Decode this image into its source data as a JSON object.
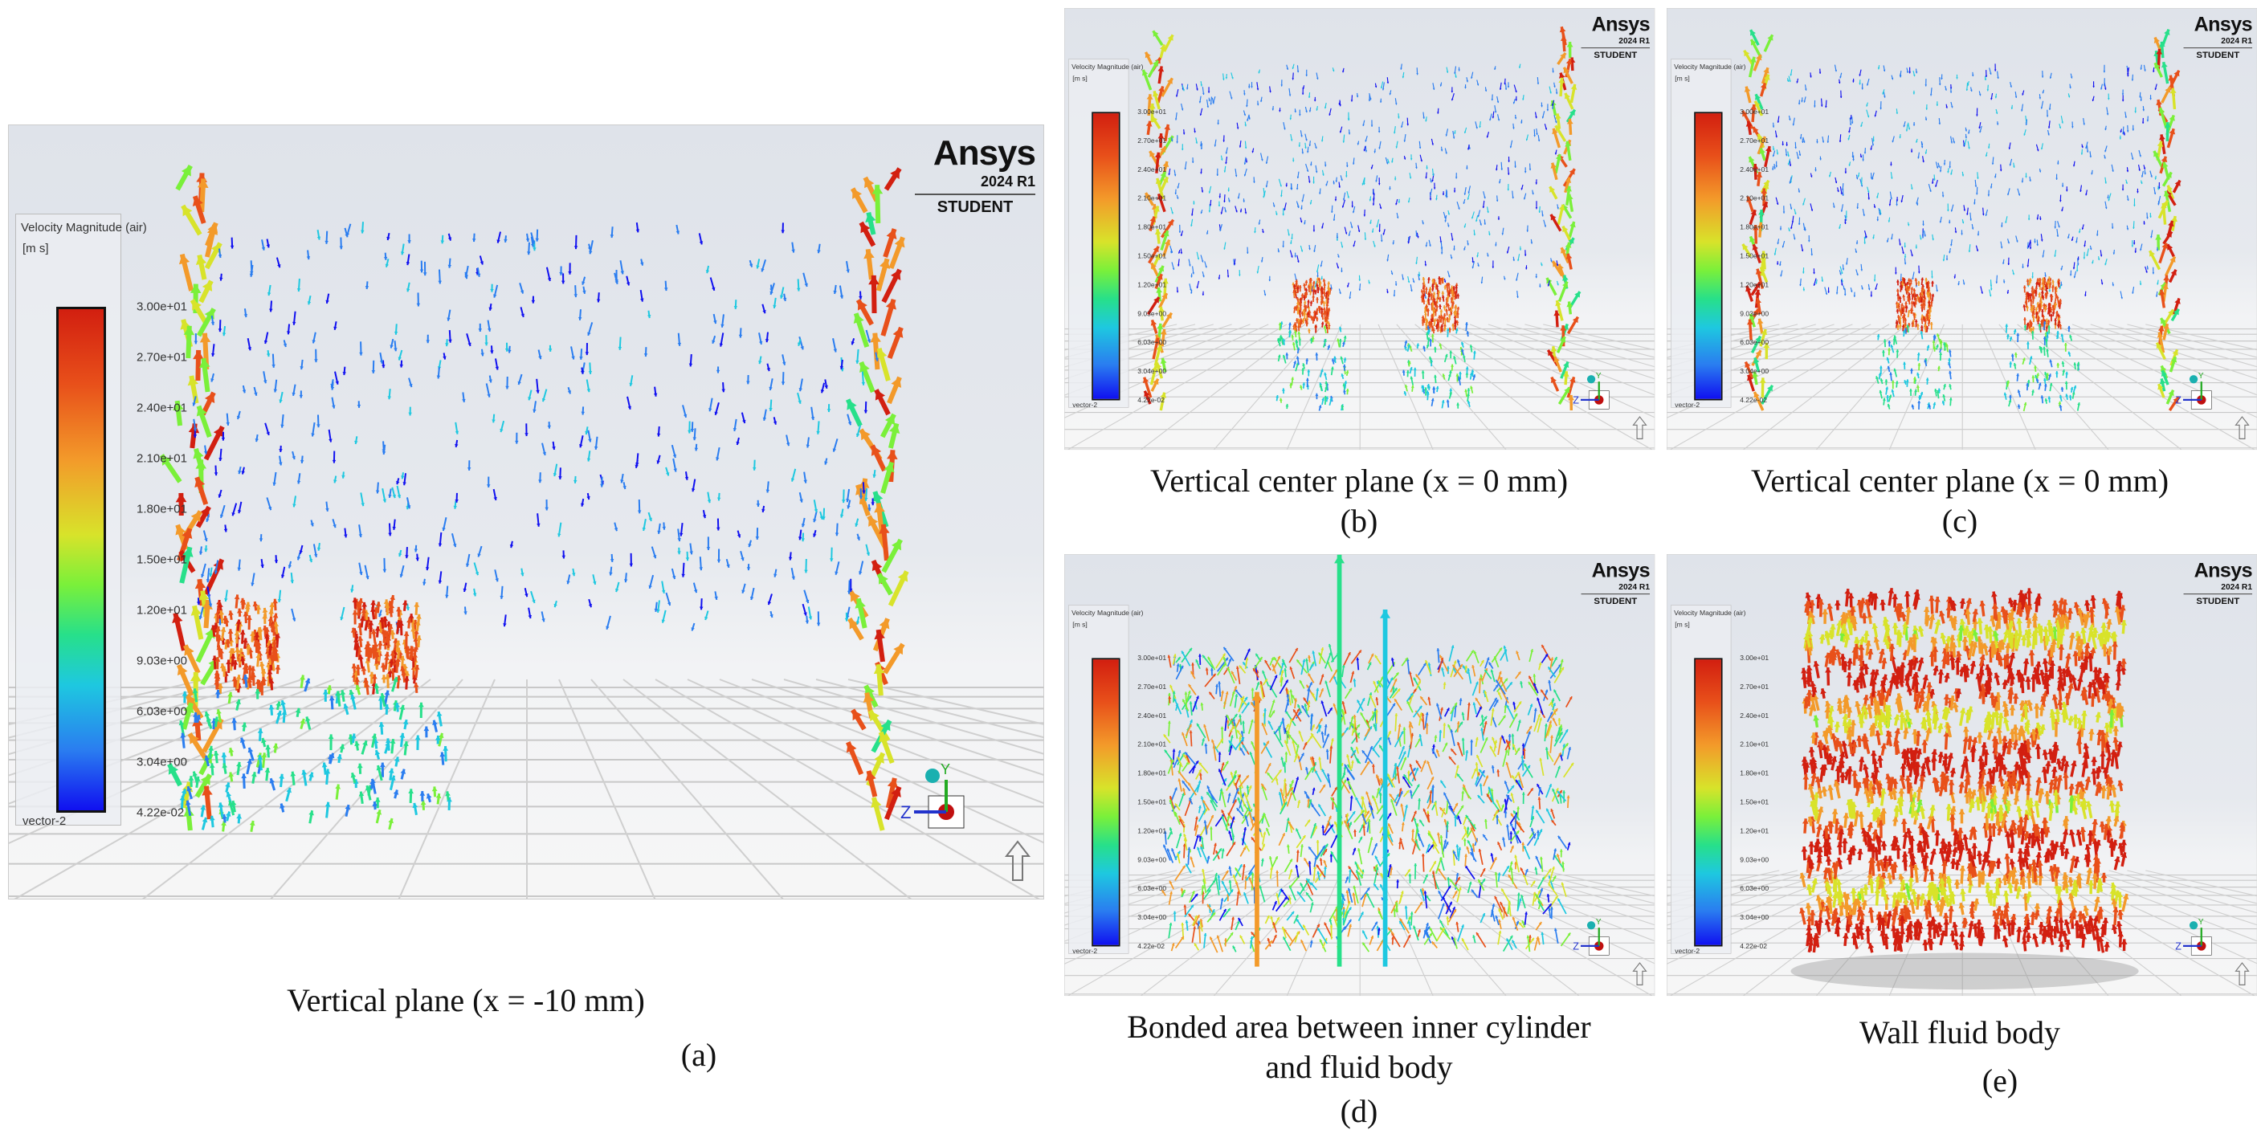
{
  "legend": {
    "title": "Velocity Magnitude (air)",
    "unit": "[m s]",
    "labels": [
      "3.00e+01",
      "2.70e+01",
      "2.40e+01",
      "2.10e+01",
      "1.80e+01",
      "1.50e+01",
      "1.20e+01",
      "9.03e+00",
      "6.03e+00",
      "3.04e+00",
      "4.22e-02"
    ],
    "vector_label": "vector-2",
    "colormap": [
      "#d21f10",
      "#e8501a",
      "#f39a2a",
      "#d8e32a",
      "#7af03a",
      "#27e08a",
      "#1ec8e0",
      "#2a7df0",
      "#1010f0"
    ]
  },
  "logo": {
    "brand": "Ansys",
    "version": "2024 R1",
    "edition": "STUDENT"
  },
  "triad": {
    "axis_z": "Z",
    "axis_y": "Y"
  },
  "panels": [
    {
      "id": "a",
      "caption": "Vertical plane (x = -10 mm)",
      "label": "(a)",
      "mode": "plane"
    },
    {
      "id": "b",
      "caption": "Vertical center plane (x = 0 mm)",
      "label": "(b)",
      "mode": "center"
    },
    {
      "id": "c",
      "caption": "Vertical center plane (x = 0 mm)",
      "label": "(c)",
      "mode": "center"
    },
    {
      "id": "d",
      "caption_line1": "Bonded area between inner cylinder",
      "caption_line2": "and fluid body",
      "label": "(d)",
      "mode": "bonded"
    },
    {
      "id": "e",
      "caption": "Wall fluid body",
      "label": "(e)",
      "mode": "wall"
    }
  ]
}
